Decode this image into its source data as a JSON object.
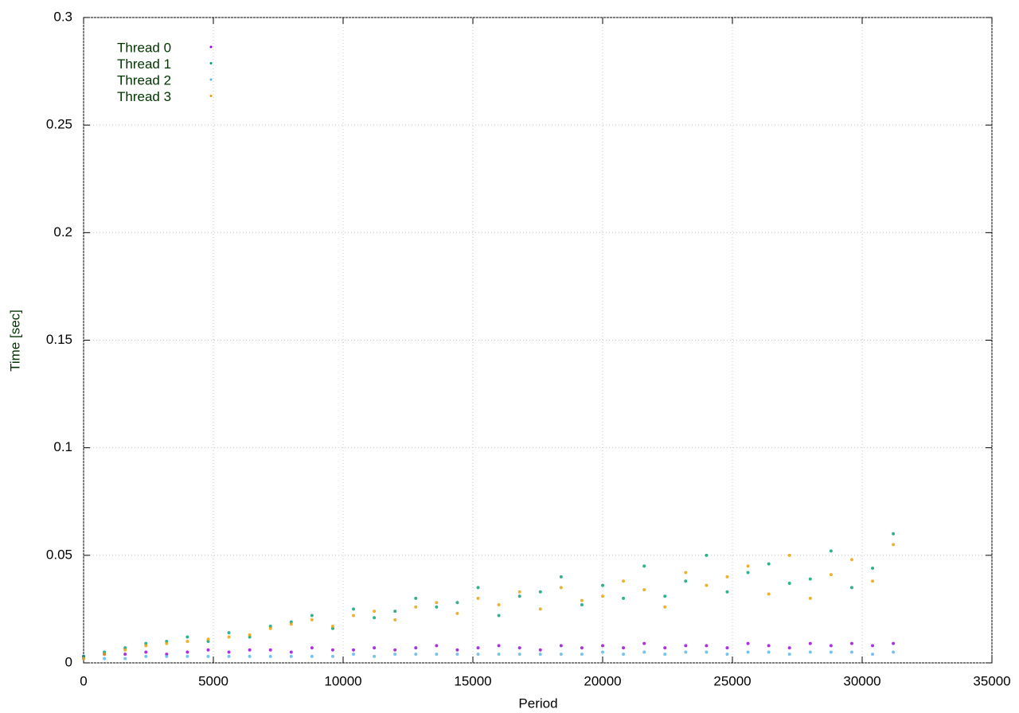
{
  "chart_data": {
    "type": "scatter",
    "xlabel": "Period",
    "ylabel": "Time [sec]",
    "xlim": [
      0,
      35000
    ],
    "ylim": [
      0,
      0.3
    ],
    "xticks": [
      0,
      5000,
      10000,
      15000,
      20000,
      25000,
      30000,
      35000
    ],
    "yticks": [
      0,
      0.05,
      0.1,
      0.15,
      0.2,
      0.25,
      0.3
    ],
    "grid": true,
    "legend": "top-left",
    "x": [
      0,
      800,
      1600,
      2400,
      3200,
      4000,
      4800,
      5600,
      6400,
      7200,
      8000,
      8800,
      9600,
      10400,
      11200,
      12000,
      12800,
      13600,
      14400,
      15200,
      16000,
      16800,
      17600,
      18400,
      19200,
      20000,
      20800,
      21600,
      22400,
      23200,
      24000,
      24800,
      25600,
      26400,
      27200,
      28000,
      28800,
      29600,
      30400,
      31200
    ],
    "series": [
      {
        "name": "Thread 0",
        "color": "#9400d3",
        "values": [
          0.003,
          0.004,
          0.004,
          0.005,
          0.004,
          0.005,
          0.006,
          0.005,
          0.006,
          0.006,
          0.005,
          0.007,
          0.006,
          0.006,
          0.007,
          0.006,
          0.007,
          0.008,
          0.006,
          0.007,
          0.008,
          0.007,
          0.006,
          0.008,
          0.007,
          0.008,
          0.007,
          0.009,
          0.007,
          0.008,
          0.008,
          0.007,
          0.009,
          0.008,
          0.007,
          0.009,
          0.008,
          0.009,
          0.008,
          0.009
        ]
      },
      {
        "name": "Thread 1",
        "color": "#009e73",
        "values": [
          0.003,
          0.005,
          0.007,
          0.009,
          0.01,
          0.012,
          0.01,
          0.014,
          0.012,
          0.017,
          0.019,
          0.022,
          0.016,
          0.025,
          0.021,
          0.024,
          0.03,
          0.026,
          0.028,
          0.035,
          0.022,
          0.031,
          0.033,
          0.04,
          0.027,
          0.036,
          0.03,
          0.045,
          0.031,
          0.038,
          0.05,
          0.033,
          0.042,
          0.046,
          0.037,
          0.039,
          0.052,
          0.035,
          0.044,
          0.06
        ]
      },
      {
        "name": "Thread 2",
        "color": "#56b4e9",
        "values": [
          0.002,
          0.002,
          0.002,
          0.003,
          0.003,
          0.003,
          0.003,
          0.003,
          0.003,
          0.003,
          0.003,
          0.003,
          0.003,
          0.004,
          0.003,
          0.004,
          0.004,
          0.004,
          0.004,
          0.004,
          0.004,
          0.004,
          0.004,
          0.004,
          0.004,
          0.005,
          0.004,
          0.005,
          0.004,
          0.005,
          0.005,
          0.004,
          0.005,
          0.005,
          0.004,
          0.005,
          0.005,
          0.005,
          0.004,
          0.005
        ]
      },
      {
        "name": "Thread 3",
        "color": "#e69f00",
        "values": [
          0.002,
          0.004,
          0.006,
          0.008,
          0.009,
          0.01,
          0.011,
          0.012,
          0.013,
          0.016,
          0.018,
          0.02,
          0.017,
          0.022,
          0.024,
          0.02,
          0.026,
          0.028,
          0.023,
          0.03,
          0.027,
          0.033,
          0.025,
          0.035,
          0.029,
          0.031,
          0.038,
          0.034,
          0.026,
          0.042,
          0.036,
          0.04,
          0.045,
          0.032,
          0.05,
          0.03,
          0.041,
          0.048,
          0.038,
          0.055
        ]
      }
    ]
  }
}
